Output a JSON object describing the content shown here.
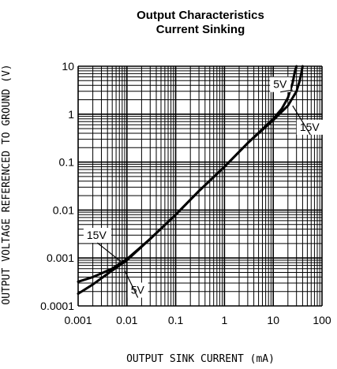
{
  "chart_data": {
    "type": "line",
    "title": "Output Characteristics",
    "subtitle": "Current Sinking",
    "xlabel": "OUTPUT SINK CURRENT (mA)",
    "ylabel": "OUTPUT VOLTAGE REFERENCED TO GROUND (V)",
    "xscale": "log",
    "yscale": "log",
    "xlim": [
      0.001,
      100
    ],
    "ylim": [
      0.0001,
      10
    ],
    "x_ticks": [
      0.001,
      0.01,
      0.1,
      1,
      10,
      100
    ],
    "y_ticks": [
      0.0001,
      0.001,
      0.01,
      0.1,
      1,
      10
    ],
    "x_tick_labels": [
      "0.001",
      "0.01",
      "0.1",
      "1",
      "10",
      "100"
    ],
    "y_tick_labels": [
      "0.0001",
      "0.001",
      "0.01",
      "0.1",
      "1",
      "10"
    ],
    "grid": true,
    "series": [
      {
        "name": "5V",
        "x": [
          0.001,
          0.002,
          0.005,
          0.01,
          0.03,
          0.1,
          0.3,
          1,
          3,
          10,
          15,
          20,
          25,
          28,
          30
        ],
        "y": [
          0.00018,
          0.00028,
          0.00055,
          0.0009,
          0.0025,
          0.008,
          0.025,
          0.08,
          0.25,
          0.8,
          1.3,
          2.2,
          4.5,
          8,
          10
        ]
      },
      {
        "name": "15V",
        "x": [
          0.001,
          0.002,
          0.005,
          0.01,
          0.03,
          0.1,
          0.3,
          1,
          3,
          10,
          20,
          30,
          35,
          38,
          40
        ],
        "y": [
          0.00032,
          0.0004,
          0.0006,
          0.00095,
          0.0025,
          0.008,
          0.025,
          0.08,
          0.25,
          0.75,
          1.5,
          3,
          5,
          7.5,
          10
        ]
      }
    ],
    "annotations": [
      {
        "text": "5V",
        "x": 10,
        "y": 3.5
      },
      {
        "text": "15V",
        "x": 35,
        "y": 0.45
      },
      {
        "text": "15V",
        "x": 0.0015,
        "y": 0.0025
      },
      {
        "text": "5V",
        "x": 0.012,
        "y": 0.00018
      }
    ]
  }
}
